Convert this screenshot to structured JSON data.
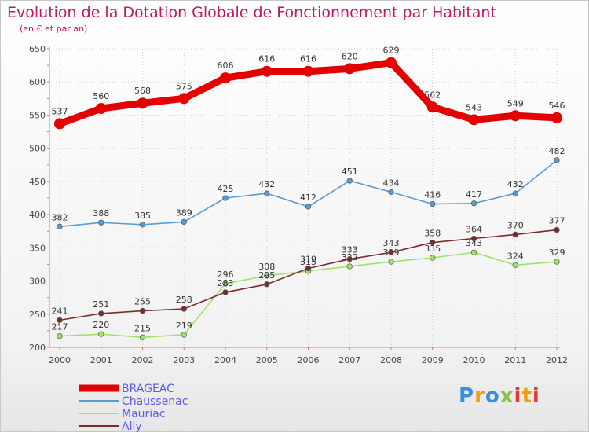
{
  "chart_data": {
    "type": "line",
    "title": "Evolution de la Dotation Globale de Fonctionnement par Habitant",
    "subtitle": "(en € et par an)",
    "x": [
      "2000",
      "2001",
      "2002",
      "2003",
      "2004",
      "2005",
      "2006",
      "2007",
      "2008",
      "2009",
      "2010",
      "2011",
      "2012"
    ],
    "ylim": [
      200,
      650
    ],
    "yticks": [
      200,
      250,
      300,
      350,
      400,
      450,
      500,
      550,
      600,
      650
    ],
    "grid": true,
    "legend_placement": "bottom-left",
    "series": [
      {
        "name": "BRAGEAC",
        "color": "#e30000",
        "values": [
          537,
          560,
          568,
          575,
          606,
          616,
          616,
          620,
          629,
          562,
          543,
          549,
          546
        ]
      },
      {
        "name": "Chaussenac",
        "color": "#5b9bd5",
        "values": [
          382,
          388,
          385,
          389,
          425,
          432,
          412,
          451,
          434,
          416,
          417,
          432,
          482
        ]
      },
      {
        "name": "Mauriac",
        "color": "#9be36b",
        "values": [
          217,
          220,
          215,
          219,
          296,
          308,
          315,
          322,
          329,
          335,
          343,
          324,
          329
        ]
      },
      {
        "name": "Ally",
        "color": "#7b2b2b",
        "values": [
          241,
          251,
          255,
          258,
          283,
          295,
          319,
          333,
          343,
          358,
          364,
          370,
          377
        ]
      }
    ]
  },
  "brand": {
    "logo_text": "Proxiti"
  }
}
